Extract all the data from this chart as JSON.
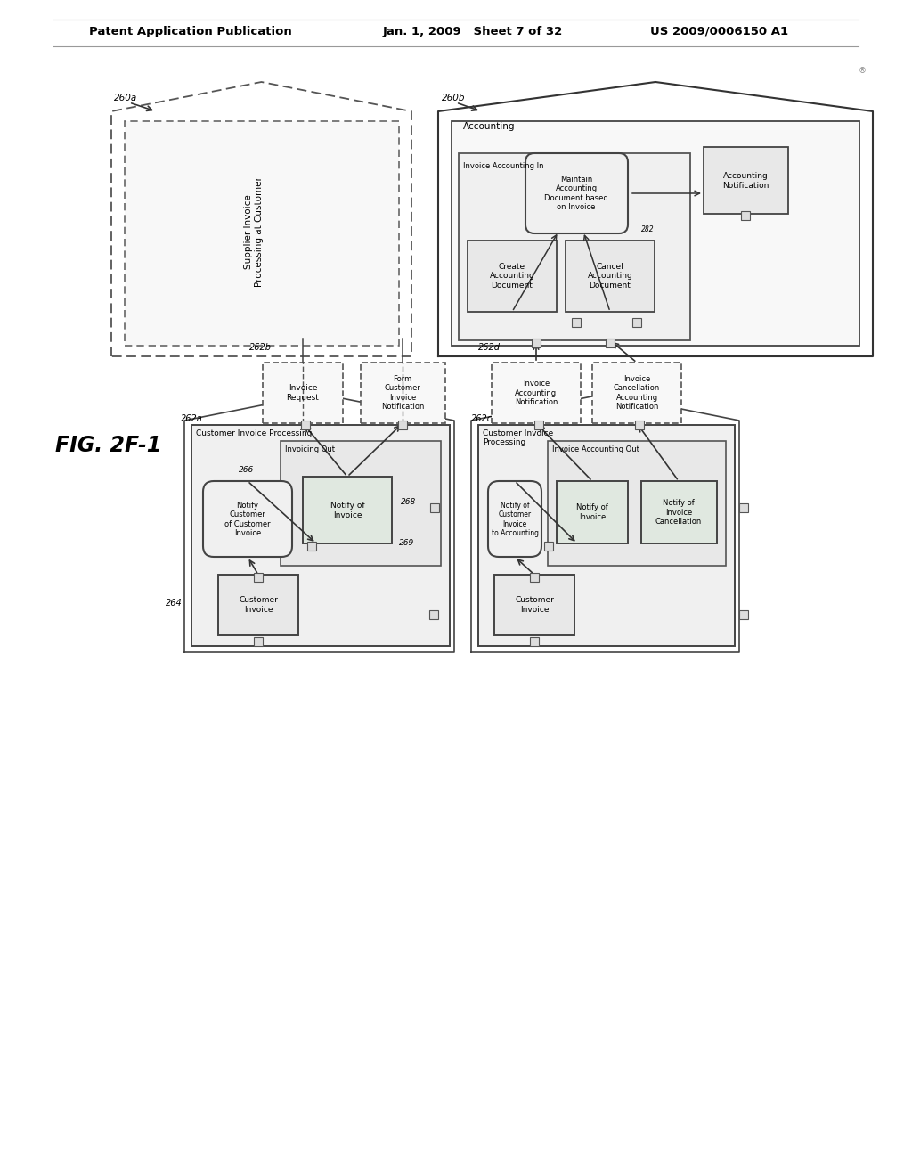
{
  "page_header_left": "Patent Application Publication",
  "page_header_mid": "Jan. 1, 2009   Sheet 7 of 32",
  "page_header_right": "US 2009/0006150 A1",
  "fig_label": "FIG. 2F-1",
  "bg_color": "#ffffff",
  "light_gray": "#f0f0f0",
  "mid_gray": "#e0e0e0",
  "dark_line": "#333333",
  "dashed_line": "#555555"
}
